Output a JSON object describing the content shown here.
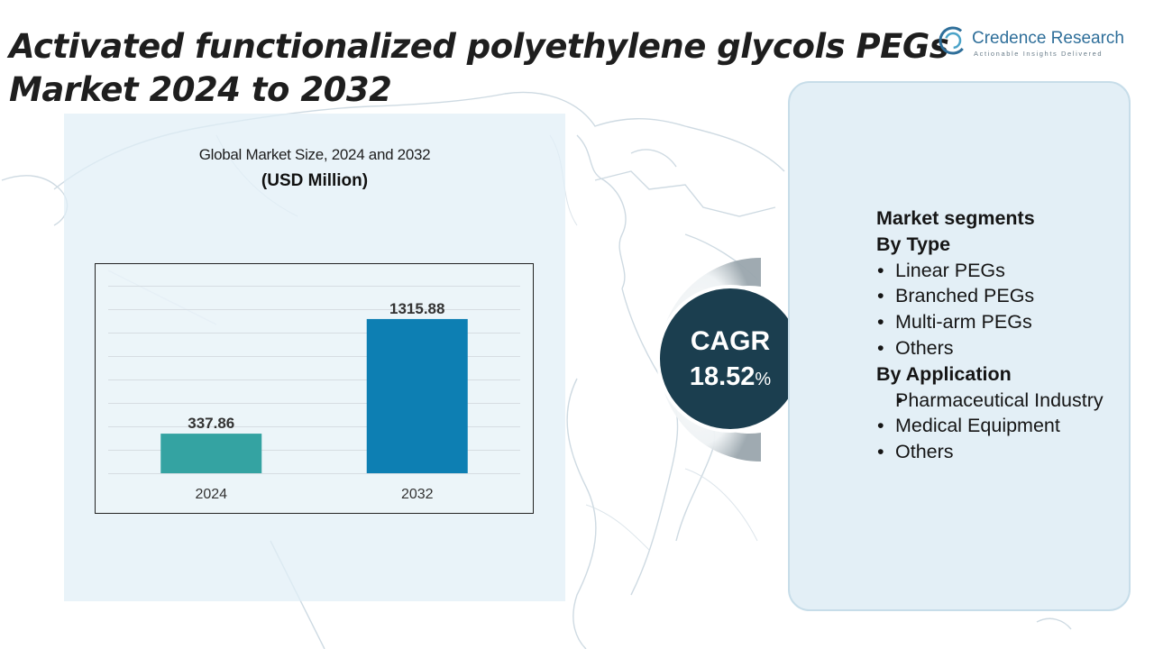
{
  "title": "Activated functionalized polyethylene glycols PEGs Market 2024 to 2032",
  "logo": {
    "name": "Credence Research",
    "tagline": "Actionable Insights Delivered",
    "icon": "credence-logo-icon"
  },
  "chart_data": {
    "type": "bar",
    "title": "Global Market Size, 2024 and 2032",
    "subtitle": "(USD Million)",
    "categories": [
      "2024",
      "2032"
    ],
    "values": [
      337.86,
      1315.88
    ],
    "value_labels": [
      "337.86",
      "1315.88"
    ],
    "ylim": [
      0,
      1600
    ],
    "grid": true,
    "colors": [
      "#34a3a2",
      "#0d7fb3"
    ]
  },
  "cagr": {
    "label": "CAGR",
    "value": "18.52",
    "unit": "%"
  },
  "segments": {
    "heading": "Market segments",
    "groups": [
      {
        "title": "By Type",
        "items": [
          "Linear PEGs",
          "Branched PEGs",
          "Multi-arm PEGs",
          "Others"
        ]
      },
      {
        "title": "By Application",
        "items": [
          "Pharmaceutical Industry",
          "Medical Equipment",
          "Others"
        ]
      }
    ]
  },
  "colors": {
    "cagr_circle": "#1b3e4f",
    "panel": "#e3eff6",
    "logo": "#2f6f9a"
  }
}
